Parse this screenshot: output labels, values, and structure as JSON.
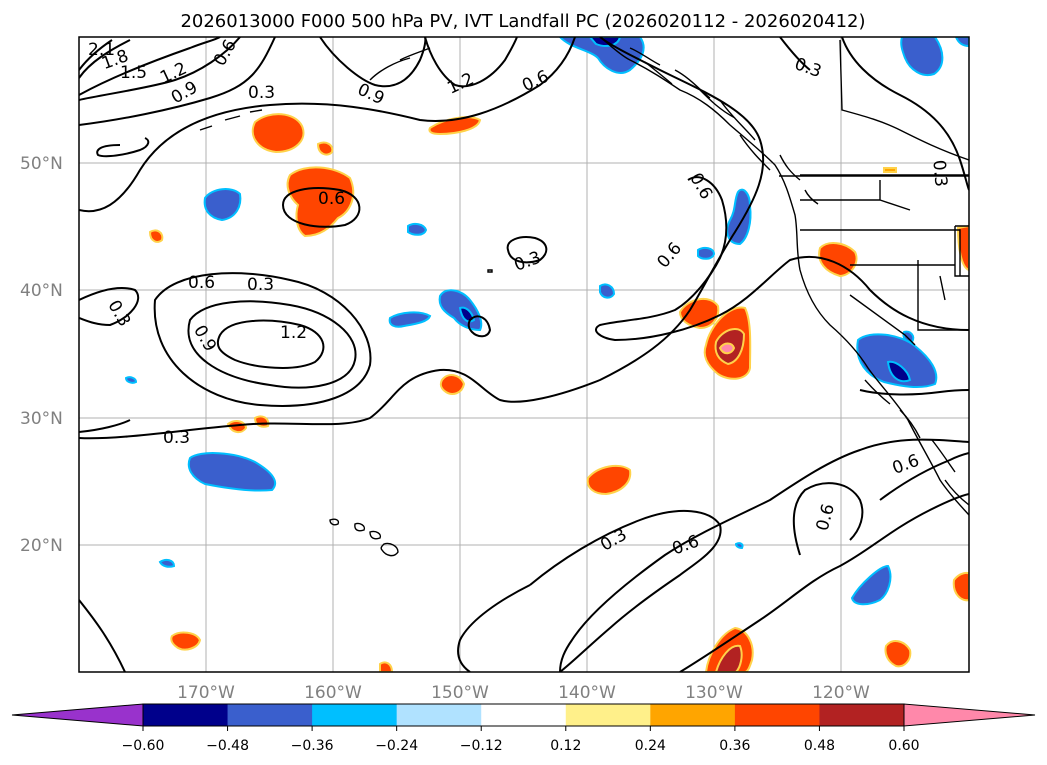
{
  "title": "2026013000 F000 500 hPa PV, IVT Landfall PC (2026020112 - 2026020412)",
  "map": {
    "lat_labels": [
      "50°N",
      "40°N",
      "30°N",
      "20°N"
    ],
    "lon_labels": [
      "170°W",
      "160°W",
      "150°W",
      "140°W",
      "130°W",
      "120°W"
    ],
    "contour_labels": [
      "2.1",
      "1.8",
      "1.5",
      "1.2",
      "0.9",
      "0.6",
      "0.3",
      "0.9",
      "1.2",
      "0.6",
      "0.3",
      "0.6",
      "0.6",
      "0.3",
      "0.6",
      "0.3",
      "1.2",
      "0.9",
      "0.3",
      "0.3",
      "0.3",
      "0.6",
      "0.6",
      "0.6",
      "0.3"
    ],
    "colors": {
      "coast": "#000000",
      "grid": "#b0b0b0",
      "contour": "#000000"
    }
  },
  "colorbar": {
    "ticks": [
      "−0.60",
      "−0.48",
      "−0.36",
      "−0.24",
      "−0.12",
      "0.12",
      "0.24",
      "0.36",
      "0.48",
      "0.60"
    ],
    "colors": [
      "#9932cc",
      "#00008b",
      "#3a5fcd",
      "#00bfff",
      "#b0e2ff",
      "#ffffff",
      "#fff08a",
      "#ffa500",
      "#ff4500",
      "#b22222",
      "#ff88aa"
    ]
  }
}
